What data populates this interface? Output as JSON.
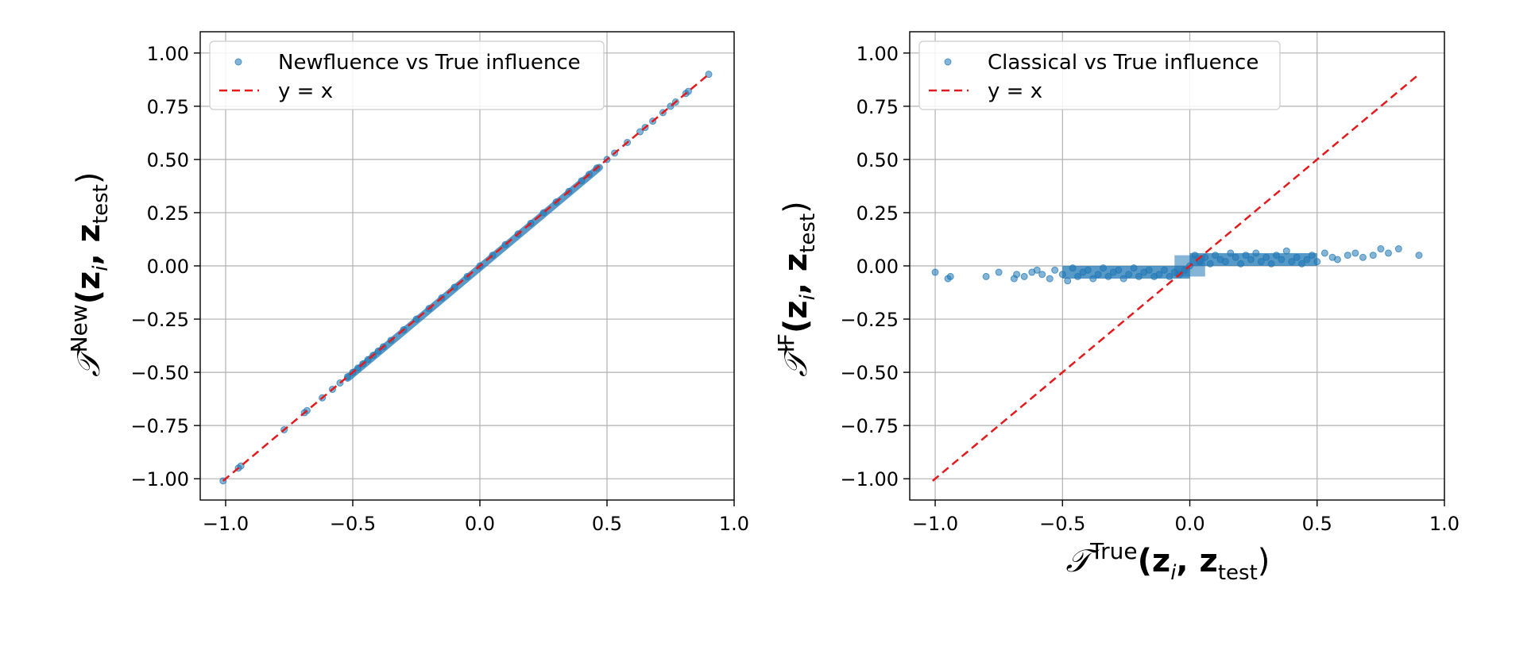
{
  "chart_data": [
    {
      "type": "scatter",
      "title": "",
      "xlim": [
        -1.1,
        1.0
      ],
      "ylim": [
        -1.1,
        1.1
      ],
      "xticks": [
        -1.0,
        -0.5,
        0.0,
        0.5,
        1.0
      ],
      "xtick_labels": [
        "−1.0",
        "−0.5",
        "0.0",
        "0.5",
        "1.0"
      ],
      "yticks": [
        -1.0,
        -0.75,
        -0.5,
        -0.25,
        0.0,
        0.25,
        0.5,
        0.75,
        1.0
      ],
      "ytick_labels": [
        "−1.00",
        "−0.75",
        "−0.50",
        "−0.25",
        "0.00",
        "0.25",
        "0.50",
        "0.75",
        "1.00"
      ],
      "grid": true,
      "legend_position": "top-left",
      "xlabel": {
        "base": "",
        "sup": "",
        "args": ""
      },
      "ylabel": {
        "base": "𝒯",
        "sup": "New",
        "args_prefix": "(z",
        "sub_i": "i",
        "args_mid": ", z",
        "sub_test": "test",
        "args_suffix": ")"
      },
      "series": [
        {
          "name": "Newfluence vs True influence",
          "kind": "scatter",
          "color": "#1f77b4",
          "points": [
            [
              -1.01,
              -1.01
            ],
            [
              -0.95,
              -0.95
            ],
            [
              -0.94,
              -0.94
            ],
            [
              -0.77,
              -0.77
            ],
            [
              -0.69,
              -0.69
            ],
            [
              -0.68,
              -0.68
            ],
            [
              -0.62,
              -0.62
            ],
            [
              -0.58,
              -0.58
            ],
            [
              -0.55,
              -0.55
            ],
            [
              -0.52,
              -0.52
            ],
            [
              -0.5,
              -0.5
            ],
            [
              -0.48,
              -0.48
            ],
            [
              -0.46,
              -0.46
            ],
            [
              -0.44,
              -0.44
            ],
            [
              -0.42,
              -0.42
            ],
            [
              -0.4,
              -0.4
            ],
            [
              -0.38,
              -0.38
            ],
            [
              -0.35,
              -0.35
            ],
            [
              -0.3,
              -0.3
            ],
            [
              -0.25,
              -0.25
            ],
            [
              -0.2,
              -0.2
            ],
            [
              -0.15,
              -0.15
            ],
            [
              -0.1,
              -0.1
            ],
            [
              -0.05,
              -0.05
            ],
            [
              0.0,
              0.0
            ],
            [
              0.05,
              0.05
            ],
            [
              0.1,
              0.1
            ],
            [
              0.15,
              0.15
            ],
            [
              0.2,
              0.2
            ],
            [
              0.25,
              0.25
            ],
            [
              0.3,
              0.3
            ],
            [
              0.35,
              0.35
            ],
            [
              0.4,
              0.4
            ],
            [
              0.43,
              0.43
            ],
            [
              0.46,
              0.46
            ],
            [
              0.5,
              0.5
            ],
            [
              0.53,
              0.53
            ],
            [
              0.58,
              0.58
            ],
            [
              0.63,
              0.63
            ],
            [
              0.65,
              0.65
            ],
            [
              0.68,
              0.68
            ],
            [
              0.72,
              0.72
            ],
            [
              0.75,
              0.75
            ],
            [
              0.77,
              0.77
            ],
            [
              0.81,
              0.81
            ],
            [
              0.82,
              0.82
            ],
            [
              0.9,
              0.9
            ]
          ]
        },
        {
          "name": "y = x",
          "kind": "line",
          "style": "dashed",
          "color": "#e41a1c",
          "x": [
            -1.01,
            0.9
          ],
          "y": [
            -1.01,
            0.9
          ]
        }
      ]
    },
    {
      "type": "scatter",
      "title": "",
      "xlim": [
        -1.1,
        1.0
      ],
      "ylim": [
        -1.1,
        1.1
      ],
      "xticks": [
        -1.0,
        -0.5,
        0.0,
        0.5,
        1.0
      ],
      "xtick_labels": [
        "−1.0",
        "−0.5",
        "0.0",
        "0.5",
        "1.0"
      ],
      "yticks": [
        -1.0,
        -0.75,
        -0.5,
        -0.25,
        0.0,
        0.25,
        0.5,
        0.75,
        1.0
      ],
      "ytick_labels": [
        "−1.00",
        "−0.75",
        "−0.50",
        "−0.25",
        "0.00",
        "0.25",
        "0.50",
        "0.75",
        "1.00"
      ],
      "grid": true,
      "legend_position": "top-left",
      "xlabel": {
        "base": "𝒯",
        "sup": "True",
        "args_prefix": "(z",
        "sub_i": "i",
        "args_mid": ", z",
        "sub_test": "test",
        "args_suffix": ")"
      },
      "ylabel": {
        "base": "𝒯",
        "sup": "IF",
        "args_prefix": "(z",
        "sub_i": "i",
        "args_mid": ", z",
        "sub_test": "test",
        "args_suffix": ")"
      },
      "series": [
        {
          "name": "Classical vs True influence",
          "kind": "scatter",
          "color": "#1f77b4",
          "points": [
            [
              -1.0,
              -0.03
            ],
            [
              -0.95,
              -0.06
            ],
            [
              -0.94,
              -0.05
            ],
            [
              -0.8,
              -0.05
            ],
            [
              -0.75,
              -0.03
            ],
            [
              -0.69,
              -0.06
            ],
            [
              -0.68,
              -0.04
            ],
            [
              -0.65,
              -0.05
            ],
            [
              -0.62,
              -0.03
            ],
            [
              -0.6,
              -0.02
            ],
            [
              -0.58,
              -0.04
            ],
            [
              -0.55,
              -0.06
            ],
            [
              -0.53,
              -0.02
            ],
            [
              -0.5,
              -0.04
            ],
            [
              -0.48,
              -0.07
            ],
            [
              -0.46,
              -0.01
            ],
            [
              -0.44,
              -0.05
            ],
            [
              -0.42,
              -0.03
            ],
            [
              -0.4,
              -0.02
            ],
            [
              -0.38,
              -0.06
            ],
            [
              -0.36,
              -0.04
            ],
            [
              -0.34,
              -0.01
            ],
            [
              -0.32,
              -0.05
            ],
            [
              -0.3,
              -0.03
            ],
            [
              -0.28,
              -0.02
            ],
            [
              -0.26,
              -0.06
            ],
            [
              -0.24,
              -0.04
            ],
            [
              -0.22,
              -0.01
            ],
            [
              -0.2,
              -0.05
            ],
            [
              -0.18,
              -0.03
            ],
            [
              -0.16,
              -0.02
            ],
            [
              -0.14,
              -0.05
            ],
            [
              -0.12,
              -0.04
            ],
            [
              -0.1,
              -0.02
            ],
            [
              -0.08,
              -0.05
            ],
            [
              -0.06,
              -0.03
            ],
            [
              -0.04,
              -0.04
            ],
            [
              -0.02,
              -0.02
            ],
            [
              0.0,
              0.0
            ],
            [
              0.02,
              0.05
            ],
            [
              0.04,
              0.02
            ],
            [
              0.06,
              0.04
            ],
            [
              0.08,
              0.01
            ],
            [
              0.1,
              0.05
            ],
            [
              0.12,
              0.03
            ],
            [
              0.14,
              0.02
            ],
            [
              0.16,
              0.06
            ],
            [
              0.18,
              0.04
            ],
            [
              0.2,
              0.01
            ],
            [
              0.22,
              0.05
            ],
            [
              0.24,
              0.03
            ],
            [
              0.26,
              0.06
            ],
            [
              0.28,
              0.02
            ],
            [
              0.3,
              0.04
            ],
            [
              0.32,
              0.01
            ],
            [
              0.34,
              0.05
            ],
            [
              0.36,
              0.03
            ],
            [
              0.38,
              0.07
            ],
            [
              0.4,
              0.02
            ],
            [
              0.42,
              0.04
            ],
            [
              0.44,
              0.01
            ],
            [
              0.46,
              0.03
            ],
            [
              0.48,
              0.05
            ],
            [
              0.5,
              0.02
            ],
            [
              0.53,
              0.06
            ],
            [
              0.56,
              0.04
            ],
            [
              0.58,
              0.03
            ],
            [
              0.62,
              0.05
            ],
            [
              0.65,
              0.06
            ],
            [
              0.68,
              0.04
            ],
            [
              0.72,
              0.05
            ],
            [
              0.75,
              0.08
            ],
            [
              0.78,
              0.06
            ],
            [
              0.82,
              0.08
            ],
            [
              0.9,
              0.05
            ]
          ]
        },
        {
          "name": "y = x",
          "kind": "line",
          "style": "dashed",
          "color": "#e41a1c",
          "x": [
            -1.01,
            0.9
          ],
          "y": [
            -1.01,
            0.9
          ]
        }
      ]
    }
  ]
}
